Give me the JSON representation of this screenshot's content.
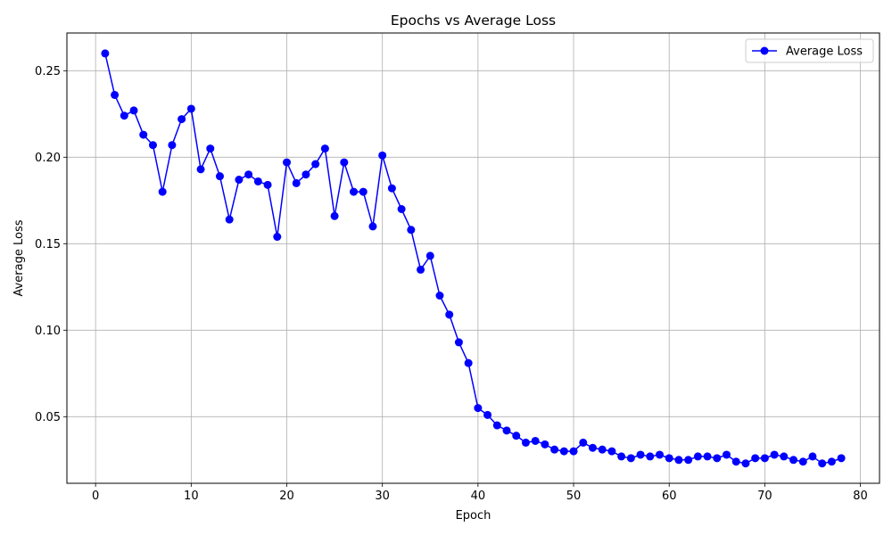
{
  "chart_data": {
    "type": "line",
    "title": "Epochs vs Average Loss",
    "xlabel": "Epoch",
    "ylabel": "Average Loss",
    "xlim": [
      -3,
      82
    ],
    "ylim": [
      0.0115,
      0.2718
    ],
    "xticks": [
      0,
      10,
      20,
      30,
      40,
      50,
      60,
      70,
      80
    ],
    "yticks": [
      0.05,
      0.1,
      0.15,
      0.2,
      0.25
    ],
    "xtick_labels": [
      "0",
      "10",
      "20",
      "30",
      "40",
      "50",
      "60",
      "70",
      "80"
    ],
    "ytick_labels": [
      "0.05",
      "0.10",
      "0.15",
      "0.20",
      "0.25"
    ],
    "grid": true,
    "legend_position": "top-right",
    "series": [
      {
        "name": "Average Loss",
        "color": "#0000ff",
        "marker": "circle",
        "x": [
          1,
          2,
          3,
          4,
          5,
          6,
          7,
          8,
          9,
          10,
          11,
          12,
          13,
          14,
          15,
          16,
          17,
          18,
          19,
          20,
          21,
          22,
          23,
          24,
          25,
          26,
          27,
          28,
          29,
          30,
          31,
          32,
          33,
          34,
          35,
          36,
          37,
          38,
          39,
          40,
          41,
          42,
          43,
          44,
          45,
          46,
          47,
          48,
          49,
          50,
          51,
          52,
          53,
          54,
          55,
          56,
          57,
          58,
          59,
          60,
          61,
          62,
          63,
          64,
          65,
          66,
          67,
          68,
          69,
          70,
          71,
          72,
          73,
          74,
          75,
          76,
          77,
          78
        ],
        "values": [
          0.26,
          0.236,
          0.224,
          0.227,
          0.213,
          0.207,
          0.18,
          0.207,
          0.222,
          0.228,
          0.193,
          0.205,
          0.189,
          0.164,
          0.187,
          0.19,
          0.186,
          0.184,
          0.154,
          0.197,
          0.185,
          0.19,
          0.196,
          0.205,
          0.166,
          0.197,
          0.18,
          0.18,
          0.16,
          0.201,
          0.182,
          0.17,
          0.158,
          0.135,
          0.143,
          0.12,
          0.109,
          0.093,
          0.081,
          0.055,
          0.051,
          0.045,
          0.042,
          0.039,
          0.035,
          0.036,
          0.034,
          0.031,
          0.03,
          0.03,
          0.035,
          0.032,
          0.031,
          0.03,
          0.027,
          0.026,
          0.028,
          0.027,
          0.028,
          0.026,
          0.025,
          0.025,
          0.027,
          0.027,
          0.026,
          0.028,
          0.024,
          0.023,
          0.026,
          0.026,
          0.028,
          0.027,
          0.025,
          0.024,
          0.027,
          0.023,
          0.024,
          0.026
        ]
      }
    ]
  }
}
